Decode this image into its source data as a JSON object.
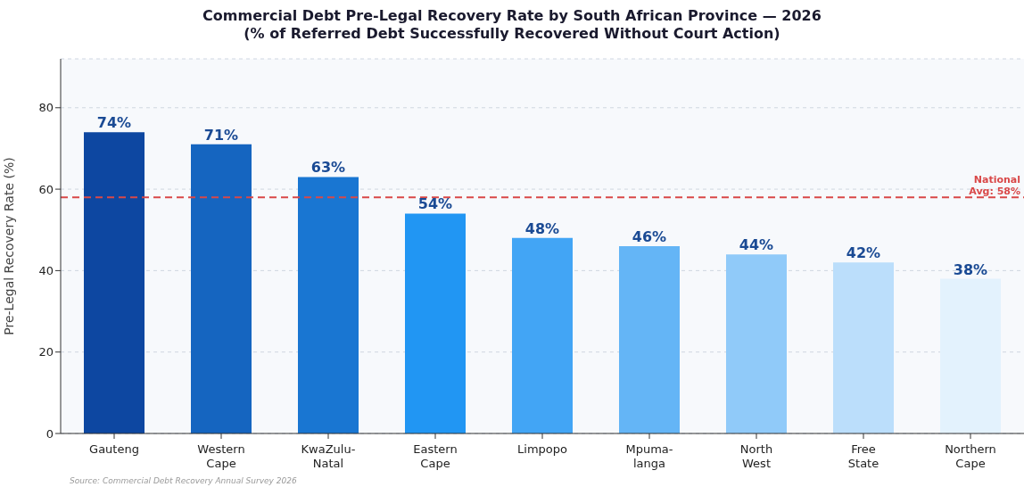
{
  "chart_data": {
    "type": "bar",
    "title": "Commercial Debt Pre-Legal Recovery Rate by South African Province — 2026",
    "subtitle": "(% of Referred Debt Successfully Recovered Without Court Action)",
    "ylabel": "Pre-Legal Recovery Rate (%)",
    "categories": [
      "Gauteng",
      "Western\nCape",
      "KwaZulu-\nNatal",
      "Eastern\nCape",
      "Limpopo",
      "Mpuma-\nlanga",
      "North\nWest",
      "Free\nState",
      "Northern\nCape"
    ],
    "values": [
      74,
      71,
      63,
      54,
      48,
      46,
      44,
      42,
      38
    ],
    "value_labels": [
      "74%",
      "71%",
      "63%",
      "54%",
      "48%",
      "46%",
      "44%",
      "42%",
      "38%"
    ],
    "colors": [
      "#0d47a1",
      "#1565c0",
      "#1976d2",
      "#2196f3",
      "#42a5f5",
      "#64b5f6",
      "#90caf9",
      "#bbdefb",
      "#e3f2fd"
    ],
    "ylim": [
      0,
      92
    ],
    "yticks": [
      0,
      20,
      40,
      60,
      80
    ],
    "grid": "y",
    "ref_lines": [
      {
        "axis": "y",
        "value": 58,
        "label": "National\nAvg: 58%",
        "color": "#d94848",
        "line_style": "dashed"
      }
    ],
    "annotations": [
      "Source: Commercial Debt Recovery Annual Survey 2026"
    ]
  }
}
